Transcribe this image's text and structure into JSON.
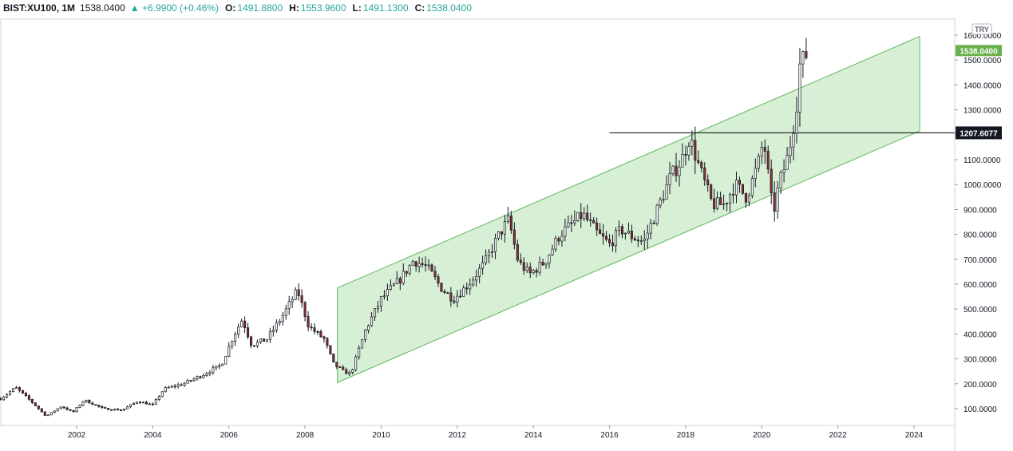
{
  "header": {
    "symbol": "BIST:XU100, 1M",
    "last": "1538.0400",
    "change": "▲ +6.9900 (+0.46%)",
    "o_label": "O:",
    "o_value": "1491.8800",
    "h_label": "H:",
    "h_value": "1553.9600",
    "l_label": "L:",
    "l_value": "1491.1300",
    "c_label": "C:",
    "c_value": "1538.0400"
  },
  "currency_button": "TRY",
  "colors": {
    "up": "#ffffff",
    "down": "#8b2e2e",
    "wick": "#131722",
    "channel_fill": "#d7efd4",
    "channel_line": "#5cb85c",
    "last_price_label": "#6ab04c",
    "level_label": "#131722"
  },
  "chart_data": {
    "type": "candlestick",
    "timeframe": "1M",
    "x_axis": {
      "ticks": [
        "2002",
        "2004",
        "2006",
        "2008",
        "2010",
        "2012",
        "2014",
        "2016",
        "2018",
        "2020",
        "2022",
        "2024"
      ]
    },
    "y_axis": {
      "ticks": [
        "100.0000",
        "200.0000",
        "300.0000",
        "400.0000",
        "500.0000",
        "600.0000",
        "700.0000",
        "800.0000",
        "900.0000",
        "1000.0000",
        "1100.0000",
        "1200.0000",
        "1300.0000",
        "1400.0000",
        "1500.0000",
        "1600.0000"
      ],
      "range": [
        40,
        1625
      ]
    },
    "last_price": 1538.04,
    "last_price_label": "1538.0400",
    "horizontal_level": {
      "value": 1207.6077,
      "label": "1207.6077",
      "from": 2016.0
    },
    "channel": {
      "start_time": 2008.85,
      "end_time": 2024.15,
      "upper": [
        585,
        1595
      ],
      "lower": [
        205,
        1215
      ]
    },
    "series_anchors": [
      [
        2000.0,
        140
      ],
      [
        2000.4,
        185
      ],
      [
        2000.8,
        130
      ],
      [
        2001.2,
        70
      ],
      [
        2001.6,
        110
      ],
      [
        2001.9,
        85
      ],
      [
        2002.2,
        135
      ],
      [
        2002.7,
        100
      ],
      [
        2003.2,
        95
      ],
      [
        2003.6,
        130
      ],
      [
        2004.0,
        115
      ],
      [
        2004.3,
        180
      ],
      [
        2004.8,
        200
      ],
      [
        2005.3,
        235
      ],
      [
        2005.8,
        275
      ],
      [
        2006.1,
        385
      ],
      [
        2006.35,
        460
      ],
      [
        2006.6,
        355
      ],
      [
        2007.0,
        380
      ],
      [
        2007.4,
        470
      ],
      [
        2007.8,
        575
      ],
      [
        2008.1,
        430
      ],
      [
        2008.5,
        380
      ],
      [
        2008.75,
        280
      ],
      [
        2009.0,
        250
      ],
      [
        2009.2,
        240
      ],
      [
        2009.6,
        420
      ],
      [
        2010.0,
        540
      ],
      [
        2010.5,
        620
      ],
      [
        2010.85,
        695
      ],
      [
        2011.2,
        670
      ],
      [
        2011.6,
        580
      ],
      [
        2011.9,
        540
      ],
      [
        2012.3,
        600
      ],
      [
        2012.7,
        680
      ],
      [
        2013.1,
        800
      ],
      [
        2013.35,
        860
      ],
      [
        2013.6,
        690
      ],
      [
        2013.9,
        640
      ],
      [
        2014.3,
        690
      ],
      [
        2014.7,
        800
      ],
      [
        2015.0,
        840
      ],
      [
        2015.3,
        880
      ],
      [
        2015.7,
        800
      ],
      [
        2016.0,
        760
      ],
      [
        2016.3,
        820
      ],
      [
        2016.6,
        790
      ],
      [
        2016.9,
        770
      ],
      [
        2017.2,
        880
      ],
      [
        2017.6,
        1030
      ],
      [
        2017.9,
        1100
      ],
      [
        2018.1,
        1190
      ],
      [
        2018.4,
        1050
      ],
      [
        2018.7,
        920
      ],
      [
        2019.0,
        920
      ],
      [
        2019.3,
        1000
      ],
      [
        2019.6,
        950
      ],
      [
        2019.9,
        1080
      ],
      [
        2020.05,
        1180
      ],
      [
        2020.2,
        1000
      ],
      [
        2020.3,
        880
      ],
      [
        2020.45,
        1000
      ],
      [
        2020.7,
        1120
      ],
      [
        2020.9,
        1300
      ],
      [
        2021.0,
        1480
      ],
      [
        2021.1,
        1500
      ],
      [
        2021.22,
        1538.04
      ]
    ]
  }
}
